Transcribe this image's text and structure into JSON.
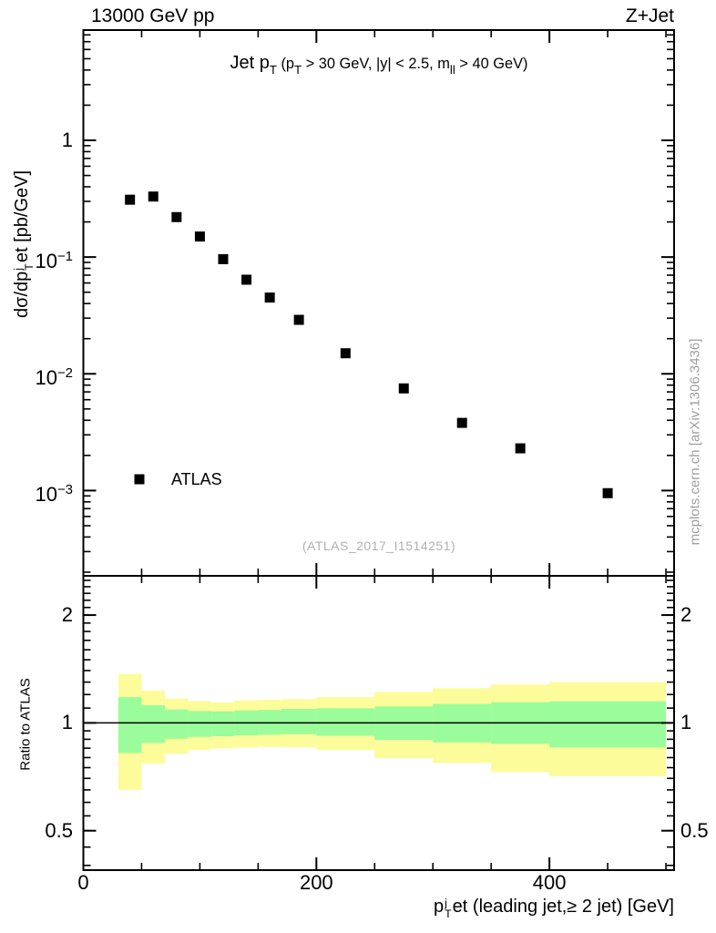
{
  "header": {
    "left": "13000 GeV pp",
    "right": "Z+Jet"
  },
  "side_note": "mcplots.cern.ch [arXiv:1306.3436]",
  "watermark": "(ATLAS_2017_I1514251)",
  "legend": {
    "label": "ATLAS"
  },
  "colors": {
    "yellow_band": "#fcfc9a",
    "green_band": "#9afc9a",
    "marker": "#000000",
    "frame": "#000000",
    "watermark_gray": "#b0b0b0",
    "side_note_gray": "#9e9e9e"
  },
  "rich_text": {
    "plot_title": [
      {
        "t": "Jet p"
      },
      {
        "t": "T",
        "s": "sub"
      },
      {
        "t": " (p",
        "s": "small"
      },
      {
        "t": "T",
        "s": "smallsub"
      },
      {
        "t": " > 30 GeV, |y| < 2.5, m",
        "s": "small"
      },
      {
        "t": "ll",
        "s": "smallsub"
      },
      {
        "t": " > 40 GeV)",
        "s": "small"
      }
    ],
    "ylabel_top": [
      {
        "t": "dσ/dp"
      },
      {
        "sup": "j",
        "sub": "T"
      },
      {
        "t": "et [pb/GeV]"
      }
    ],
    "xlabel": [
      {
        "t": "p"
      },
      {
        "sup": "j",
        "sub": "T"
      },
      {
        "t": "et (leading jet,≥ 2 jet) [GeV]"
      }
    ],
    "ylabel_ratio": [
      {
        "t": "Ratio to ATLAS"
      }
    ]
  },
  "chart_data": {
    "type": "scatter",
    "title": "Jet pT (pT > 30 GeV, |y| < 2.5, mll > 40 GeV)",
    "xlabel": "pTjet (leading jet, >= 2 jet) [GeV]",
    "xlim": [
      0,
      507
    ],
    "xticks": {
      "major": [
        0,
        200,
        400
      ],
      "labels": [
        "0",
        "200",
        "400"
      ],
      "minor_step": 50
    },
    "top_panel": {
      "ylabel": "dsigma/dpTjet [pb/GeV]",
      "yscale": "log",
      "ylim": [
        0.000186,
        8.8
      ],
      "yticks": [
        {
          "v": 1,
          "base": "1",
          "exp": ""
        },
        {
          "v": 0.1,
          "base": "10",
          "exp": "−1"
        },
        {
          "v": 0.01,
          "base": "10",
          "exp": "−2"
        },
        {
          "v": 0.001,
          "base": "10",
          "exp": "−3"
        }
      ],
      "series": [
        {
          "name": "ATLAS",
          "marker": "filled-square",
          "color": "#000000",
          "x": [
            40,
            60,
            80,
            100,
            120,
            140,
            160,
            185,
            225,
            275,
            325,
            375,
            450
          ],
          "y": [
            0.31,
            0.33,
            0.22,
            0.15,
            0.096,
            0.064,
            0.045,
            0.029,
            0.015,
            0.0075,
            0.0038,
            0.0023,
            0.00095
          ]
        }
      ]
    },
    "ratio_panel": {
      "ylabel": "Ratio to ATLAS",
      "yscale": "log",
      "ylim": [
        0.388,
        2.574
      ],
      "yticks": [
        {
          "v": 2,
          "label": "2"
        },
        {
          "v": 1,
          "label": "1"
        },
        {
          "v": 0.5,
          "label": "0.5"
        }
      ],
      "reference_line": 1,
      "bin_edges": [
        30,
        50,
        70,
        90,
        110,
        130,
        150,
        170,
        200,
        250,
        300,
        350,
        400,
        500
      ],
      "bands": [
        {
          "name": "total-uncertainty",
          "color": "#fcfc9a",
          "hi": [
            1.37,
            1.23,
            1.17,
            1.15,
            1.14,
            1.155,
            1.16,
            1.165,
            1.18,
            1.22,
            1.25,
            1.28,
            1.3
          ],
          "lo": [
            0.65,
            0.77,
            0.82,
            0.84,
            0.849,
            0.854,
            0.857,
            0.855,
            0.84,
            0.797,
            0.773,
            0.729,
            0.71
          ]
        },
        {
          "name": "stat-uncertainty",
          "color": "#9afc9a",
          "hi": [
            1.18,
            1.12,
            1.09,
            1.079,
            1.077,
            1.083,
            1.087,
            1.094,
            1.098,
            1.111,
            1.13,
            1.142,
            1.149
          ],
          "lo": [
            0.824,
            0.879,
            0.903,
            0.914,
            0.918,
            0.923,
            0.927,
            0.93,
            0.921,
            0.896,
            0.882,
            0.874,
            0.854
          ]
        }
      ]
    }
  }
}
